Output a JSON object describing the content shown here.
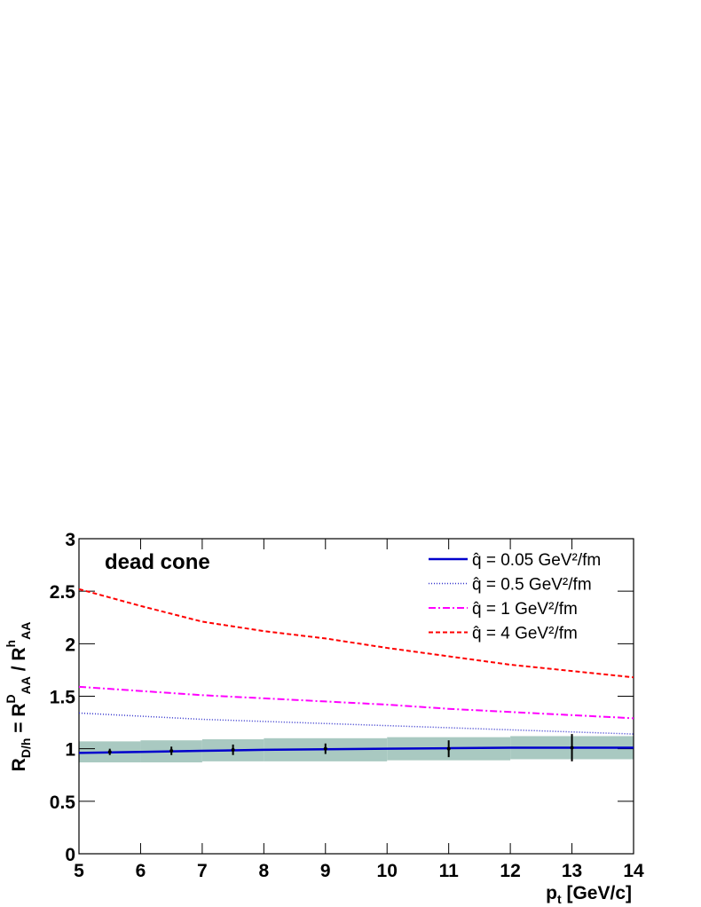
{
  "chart_data": {
    "type": "line",
    "annotation": "dead cone",
    "x_label": {
      "main": "p",
      "sub": "t",
      "rest": " [GeV/c]"
    },
    "y_label": {
      "parts": [
        {
          "text": "R",
          "pos": "base"
        },
        {
          "text": "D/h",
          "pos": "sub"
        },
        {
          "text": " = R",
          "pos": "base"
        },
        {
          "text": "D",
          "pos": "sup"
        },
        {
          "text": "AA",
          "pos": "sub"
        },
        {
          "text": " / R",
          "pos": "base"
        },
        {
          "text": "h",
          "pos": "sup"
        },
        {
          "text": "AA",
          "pos": "sub"
        }
      ]
    },
    "xlim": [
      5,
      14
    ],
    "ylim": [
      0,
      3
    ],
    "xticks": [
      5,
      6,
      7,
      8,
      9,
      10,
      11,
      12,
      13,
      14
    ],
    "yticks": [
      0,
      0.5,
      1,
      1.5,
      2,
      2.5,
      3
    ],
    "legend": "top-right",
    "x": [
      5,
      6,
      7,
      8,
      9,
      10,
      11,
      12,
      13,
      14
    ],
    "series": [
      {
        "name": "q̂ = 0.05 GeV²/fm",
        "color": "#0000cc",
        "dash": "none",
        "width": 2.5,
        "values": [
          0.96,
          0.97,
          0.98,
          0.99,
          0.995,
          1.0,
          1.005,
          1.01,
          1.01,
          1.01
        ]
      },
      {
        "name": "q̂ = 0.5 GeV²/fm",
        "color": "#3333cc",
        "dash": "1 2",
        "width": 1.5,
        "values": [
          1.34,
          1.31,
          1.28,
          1.26,
          1.24,
          1.22,
          1.2,
          1.18,
          1.16,
          1.14
        ]
      },
      {
        "name": "q̂ = 1 GeV²/fm",
        "color": "#ff00ff",
        "dash": "8 3 2 3",
        "width": 2,
        "values": [
          1.59,
          1.55,
          1.51,
          1.48,
          1.45,
          1.42,
          1.38,
          1.35,
          1.32,
          1.29
        ]
      },
      {
        "name": "q̂ = 4 GeV²/fm",
        "color": "#ff0000",
        "dash": "5 3",
        "width": 2,
        "values": [
          2.52,
          2.36,
          2.21,
          2.12,
          2.05,
          1.96,
          1.88,
          1.8,
          1.74,
          1.68
        ]
      }
    ],
    "points": {
      "color": "#000000",
      "x": [
        5.5,
        6.5,
        7.5,
        9,
        11,
        13
      ],
      "values": [
        0.97,
        0.98,
        0.99,
        1.0,
        1.0,
        1.01
      ],
      "errors": [
        0.03,
        0.04,
        0.05,
        0.05,
        0.08,
        0.13
      ]
    },
    "band": {
      "color": "#a9c9c1",
      "bins": [
        5,
        6,
        7,
        8,
        10,
        12,
        14
      ],
      "low": [
        0.87,
        0.87,
        0.88,
        0.88,
        0.89,
        0.9
      ],
      "high": [
        1.07,
        1.08,
        1.09,
        1.1,
        1.11,
        1.12
      ]
    }
  }
}
